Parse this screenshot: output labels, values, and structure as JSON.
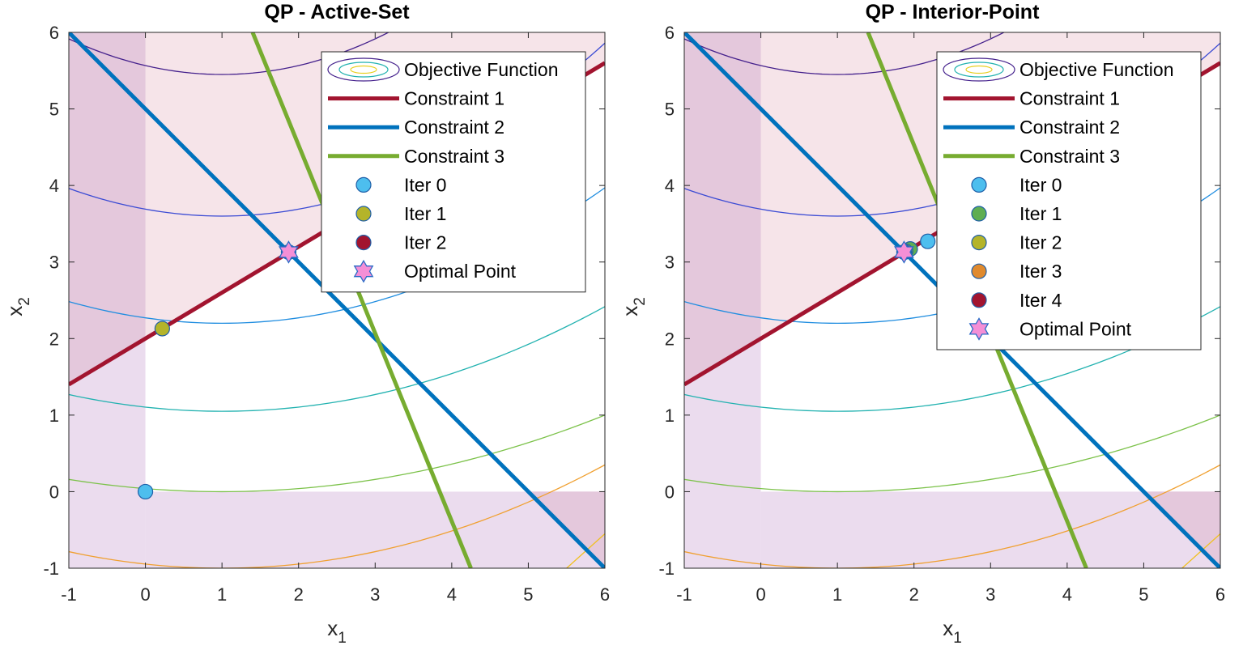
{
  "figure": {
    "subplot_count": 2,
    "colors": {
      "infeasible_region": "#f6e4e9",
      "bound_region": "#ebdcee",
      "overlap_region": "#e4c8dc",
      "constraint1": "#a2142f",
      "constraint2": "#0072bd",
      "constraint3": "#77ac30",
      "optimal": "#f48fd6",
      "axis": "#262626"
    }
  },
  "chart_data": [
    {
      "type": "contour",
      "title": "QP - Active-Set",
      "xlabel": "x",
      "xlabel_sub": "1",
      "ylabel": "x",
      "ylabel_sub": "2",
      "xlim": [
        -1,
        6
      ],
      "ylim": [
        -1,
        6
      ],
      "xticks": [
        -1,
        0,
        1,
        2,
        3,
        4,
        5,
        6
      ],
      "yticks": [
        -1,
        0,
        1,
        2,
        3,
        4,
        5,
        6
      ],
      "xtick_labels": [
        "-1",
        "0",
        "1",
        "2",
        "3",
        "4",
        "5",
        "6"
      ],
      "ytick_labels": [
        "-1",
        "0",
        "1",
        "2",
        "3",
        "4",
        "5",
        "6"
      ],
      "objective": {
        "name": "Objective Function",
        "x_center": 1,
        "curvature": 0.04,
        "levels": [
          -1.0,
          0.0,
          1.05,
          2.2,
          3.6,
          5.45
        ],
        "colors": [
          "#f0a030",
          "#7cc24a",
          "#22b2b0",
          "#1f8de0",
          "#3b4bd4",
          "#44208c"
        ]
      },
      "constraints": [
        {
          "name": "Constraint 1",
          "points": [
            [
              -1,
              1.4
            ],
            [
              6,
              5.6
            ]
          ],
          "color": "#a2142f"
        },
        {
          "name": "Constraint 2",
          "points": [
            [
              -1,
              6
            ],
            [
              6,
              -1
            ]
          ],
          "color": "#0072bd"
        },
        {
          "name": "Constraint 3",
          "points": [
            [
              1.4,
              6
            ],
            [
              4.25,
              -1
            ]
          ],
          "color": "#77ac30"
        }
      ],
      "iterations": [
        {
          "name": "Iter 0",
          "x": 0.0,
          "y": 0.0,
          "color": "#4dbeee"
        },
        {
          "name": "Iter 1",
          "x": 0.22,
          "y": 2.13,
          "color": "#b4b42a"
        },
        {
          "name": "Iter 2",
          "x": 1.87,
          "y": 3.13,
          "color": "#a2142f"
        }
      ],
      "optimal": {
        "name": "Optimal Point",
        "x": 1.87,
        "y": 3.13
      },
      "legend": [
        "Objective Function",
        "Constraint 1",
        "Constraint 2",
        "Constraint 3",
        "Iter 0",
        "Iter 1",
        "Iter 2",
        "Optimal Point"
      ],
      "legend_location": "top-right"
    },
    {
      "type": "contour",
      "title": "QP - Interior-Point",
      "xlabel": "x",
      "xlabel_sub": "1",
      "ylabel": "x",
      "ylabel_sub": "2",
      "xlim": [
        -1,
        6
      ],
      "ylim": [
        -1,
        6
      ],
      "xticks": [
        -1,
        0,
        1,
        2,
        3,
        4,
        5,
        6
      ],
      "yticks": [
        -1,
        0,
        1,
        2,
        3,
        4,
        5,
        6
      ],
      "xtick_labels": [
        "-1",
        "0",
        "1",
        "2",
        "3",
        "4",
        "5",
        "6"
      ],
      "ytick_labels": [
        "-1",
        "0",
        "1",
        "2",
        "3",
        "4",
        "5",
        "6"
      ],
      "objective": {
        "name": "Objective Function",
        "x_center": 1,
        "curvature": 0.04,
        "levels": [
          -1.0,
          0.0,
          1.05,
          2.2,
          3.6,
          5.45
        ],
        "colors": [
          "#f0a030",
          "#7cc24a",
          "#22b2b0",
          "#1f8de0",
          "#3b4bd4",
          "#44208c"
        ]
      },
      "constraints": [
        {
          "name": "Constraint 1",
          "points": [
            [
              -1,
              1.4
            ],
            [
              6,
              5.6
            ]
          ],
          "color": "#a2142f"
        },
        {
          "name": "Constraint 2",
          "points": [
            [
              -1,
              6
            ],
            [
              6,
              -1
            ]
          ],
          "color": "#0072bd"
        },
        {
          "name": "Constraint 3",
          "points": [
            [
              1.4,
              6
            ],
            [
              4.25,
              -1
            ]
          ],
          "color": "#77ac30"
        }
      ],
      "iterations": [
        {
          "name": "Iter 0",
          "x": 2.18,
          "y": 3.27,
          "color": "#4dbeee"
        },
        {
          "name": "Iter 1",
          "x": 1.95,
          "y": 3.17,
          "color": "#5fae52"
        },
        {
          "name": "Iter 2",
          "x": 1.89,
          "y": 3.14,
          "color": "#b4b42a"
        },
        {
          "name": "Iter 3",
          "x": 1.875,
          "y": 3.13,
          "color": "#e08a2e"
        },
        {
          "name": "Iter 4",
          "x": 1.87,
          "y": 3.13,
          "color": "#a2142f"
        }
      ],
      "optimal": {
        "name": "Optimal Point",
        "x": 1.87,
        "y": 3.13
      },
      "legend": [
        "Objective Function",
        "Constraint 1",
        "Constraint 2",
        "Constraint 3",
        "Iter 0",
        "Iter 1",
        "Iter 2",
        "Iter 3",
        "Iter 4",
        "Optimal Point"
      ],
      "legend_location": "top-right"
    }
  ]
}
